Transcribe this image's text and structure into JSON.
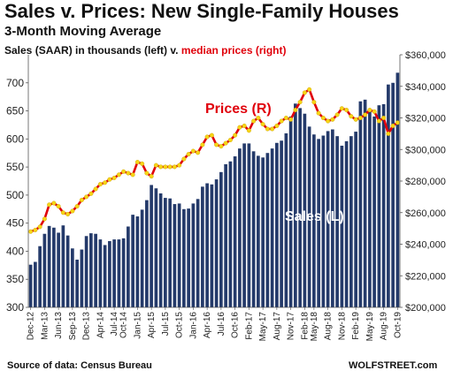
{
  "header": {
    "title": "Sales v. Prices: New Single-Family Houses",
    "subtitle": "3-Month Moving Average",
    "desc_part1": "Sales (SAAR) in thousands (left) v. ",
    "desc_part2": "median prices (right)"
  },
  "footer": {
    "source": "Source of data: Census Bureau",
    "brand": "WOLFSTREET.com"
  },
  "chart_data": {
    "type": "bar",
    "series": [
      {
        "name": "Sales (L)",
        "type": "bar",
        "axis": "left",
        "color": "#243a6a",
        "values": [
          376,
          381,
          409,
          431,
          445,
          442,
          433,
          446,
          428,
          405,
          385,
          403,
          427,
          432,
          431,
          421,
          411,
          418,
          421,
          421,
          423,
          444,
          465,
          462,
          474,
          491,
          518,
          512,
          503,
          495,
          494,
          484,
          485,
          475,
          476,
          485,
          493,
          515,
          521,
          519,
          528,
          541,
          555,
          560,
          569,
          583,
          592,
          592,
          578,
          570,
          567,
          575,
          583,
          593,
          597,
          610,
          640,
          663,
          655,
          645,
          622,
          608,
          600,
          606,
          614,
          617,
          605,
          588,
          596,
          605,
          613,
          667,
          670,
          650,
          640,
          660,
          662,
          697,
          700,
          718
        ]
      },
      {
        "name": "Prices (R)",
        "type": "line",
        "axis": "right",
        "color": "#e0000b",
        "marker_color": "#f7d417",
        "values": [
          248,
          249,
          251,
          256,
          265,
          266,
          264,
          260,
          259,
          261,
          264,
          268,
          270,
          272,
          275,
          278,
          279,
          281,
          282,
          284,
          286,
          285,
          284,
          292,
          291,
          285,
          283,
          290,
          289,
          289,
          289,
          289,
          290,
          294,
          297,
          299,
          298,
          303,
          308,
          309,
          303,
          302,
          304,
          306,
          309,
          314,
          315,
          312,
          318,
          320,
          316,
          313,
          313,
          315,
          318,
          320,
          319,
          325,
          330,
          336,
          338,
          330,
          323,
          320,
          318,
          319,
          322,
          326,
          325,
          321,
          319,
          320,
          322,
          325,
          324,
          318,
          320,
          310,
          315,
          317
        ]
      }
    ],
    "x_tick_labels": [
      "Dec-12",
      "Mar-13",
      "Jun-13",
      "Sep-13",
      "Dec-13",
      "Apr-14",
      "Jul-14",
      "Oct-14",
      "Jan-15",
      "Apr-15",
      "Jul-15",
      "Oct-15",
      "Jan-16",
      "Apr-16",
      "Jul-16",
      "Oct-16",
      "Feb-17",
      "May-17",
      "Aug-17",
      "Nov-17",
      "Feb-18",
      "May-18",
      "Aug-18",
      "Nov-18",
      "Feb-19",
      "May-19",
      "Aug-19",
      "Oct-19"
    ],
    "left_axis": {
      "ylim": [
        300,
        750
      ],
      "ticks": [
        "300",
        "350",
        "400",
        "450",
        "500",
        "550",
        "600",
        "650",
        "700"
      ]
    },
    "right_axis": {
      "ylim": [
        200,
        360
      ],
      "ticks": [
        "$200,000",
        "$220,000",
        "$240,000",
        "$260,000",
        "$280,000",
        "$300,000",
        "$320,000",
        "$340,000",
        "$360,000"
      ],
      "unit_note": "thousands of dollars"
    },
    "annotations": [
      {
        "text": "Prices (R)",
        "color": "#e0000b"
      },
      {
        "text": "Sales (L)",
        "color": "#ffffff"
      }
    ],
    "grid": false,
    "legend": "none"
  }
}
